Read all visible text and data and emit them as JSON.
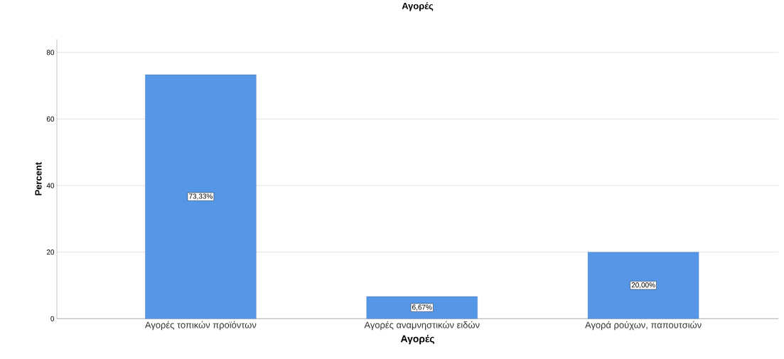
{
  "chart_data": {
    "type": "bar",
    "title": "Αγορές",
    "xlabel": "Αγορές",
    "ylabel": "Percent",
    "categories": [
      "Αγορές τοπικών προϊόντων",
      "Αγορές αναμνηστικών ειδών",
      "Αγορά ρούχων, παπουτσιών"
    ],
    "values": [
      73.33,
      6.67,
      20.0
    ],
    "value_labels": [
      "73,33%",
      "6,67%",
      "20,00%"
    ],
    "color": "#5596e6",
    "ylim": [
      0,
      84
    ],
    "yticks": [
      0,
      20,
      40,
      60,
      80
    ],
    "grid": "y"
  }
}
